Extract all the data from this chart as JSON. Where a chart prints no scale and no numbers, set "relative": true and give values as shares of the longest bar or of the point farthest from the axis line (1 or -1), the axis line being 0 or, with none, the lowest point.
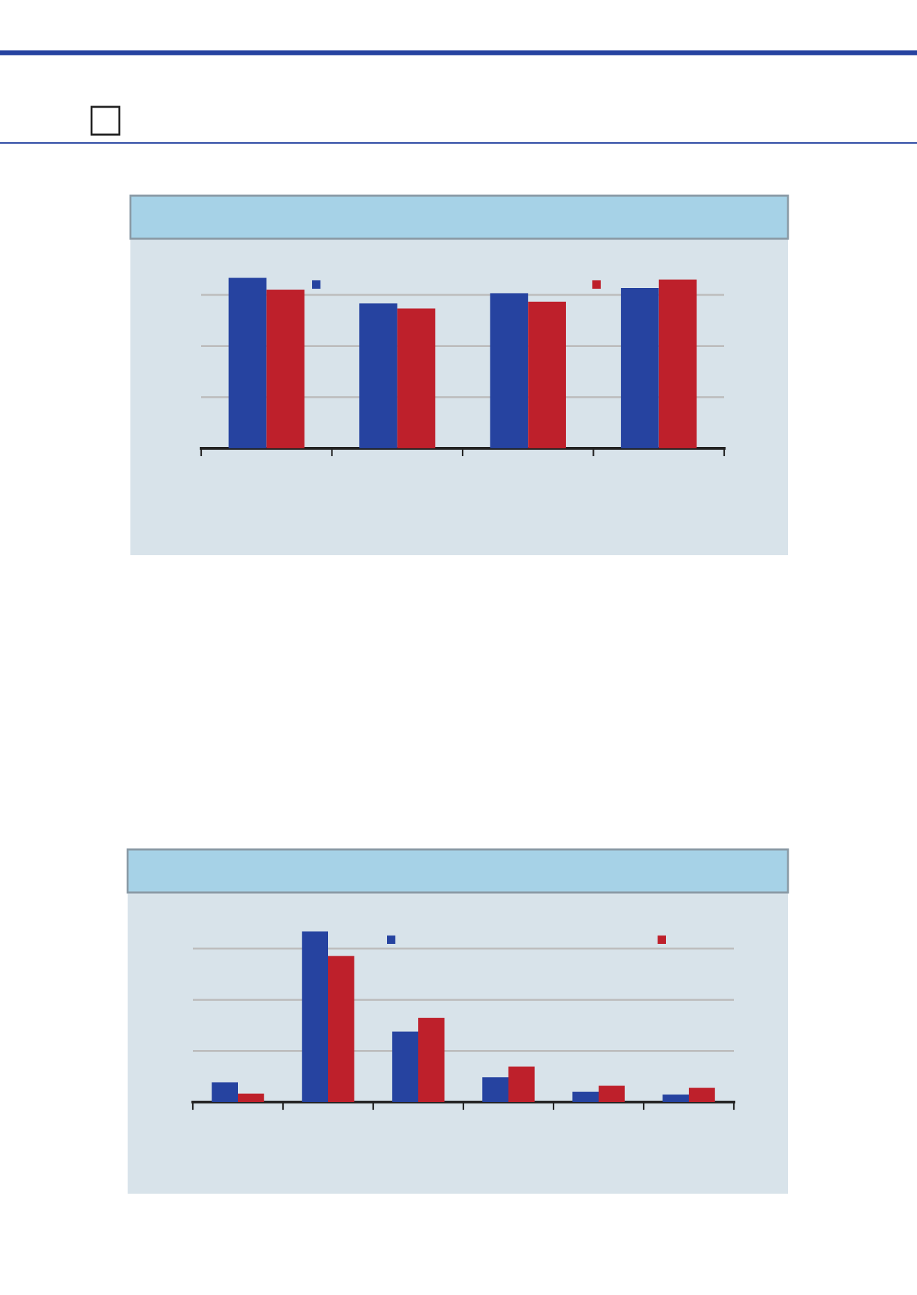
{
  "chart_data": [
    {
      "type": "bar",
      "relative": true,
      "categories": [
        null,
        null,
        null,
        null
      ],
      "grid": "y",
      "series": [
        {
          "color": "#2643a0",
          "values": [
            1,
            0.85,
            0.91,
            0.94
          ]
        },
        {
          "color": "#be202b",
          "values": [
            0.93,
            0.82,
            0.86,
            0.99
          ]
        }
      ]
    },
    {
      "type": "bar",
      "relative": true,
      "categories": [
        null,
        null,
        null,
        null,
        null,
        null
      ],
      "grid": "y",
      "series": [
        {
          "color": "#2643a0",
          "values": [
            0.116,
            1,
            0.413,
            0.146,
            0.061,
            0.044
          ]
        },
        {
          "color": "#be202b",
          "values": [
            0.05,
            0.857,
            0.493,
            0.209,
            0.096,
            0.083
          ]
        }
      ]
    }
  ]
}
